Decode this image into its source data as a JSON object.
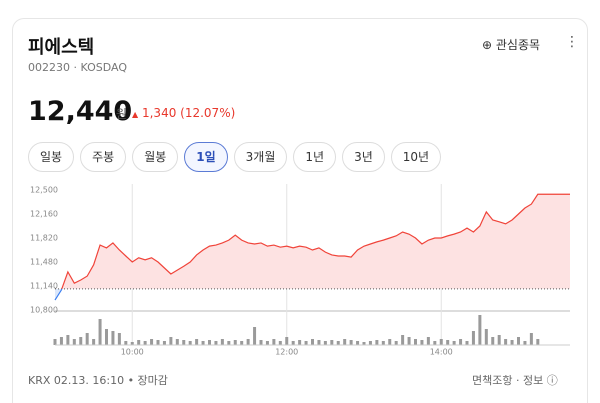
{
  "header": {
    "title": "피에스텍",
    "code": "002230 · KOSDAQ",
    "watch": "관심종목"
  },
  "price": {
    "value": "12,440",
    "unit": "원",
    "arrow": "▲",
    "change": "1,340 (12.07%)"
  },
  "tabs": [
    {
      "label": "일봉"
    },
    {
      "label": "주봉"
    },
    {
      "label": "월봉"
    },
    {
      "label": "1일",
      "active": true
    },
    {
      "label": "3개월"
    },
    {
      "label": "1년"
    },
    {
      "label": "3년"
    },
    {
      "label": "10년"
    }
  ],
  "chart_data": {
    "type": "line",
    "categories": [
      null,
      null,
      null,
      null,
      null,
      null,
      null,
      null,
      null,
      null,
      null,
      null,
      "10:00",
      null,
      null,
      null,
      null,
      null,
      null,
      null,
      null,
      null,
      null,
      null,
      null,
      null,
      null,
      null,
      null,
      null,
      null,
      null,
      null,
      null,
      null,
      null,
      "12:00",
      null,
      null,
      null,
      null,
      null,
      null,
      null,
      null,
      null,
      null,
      null,
      null,
      null,
      null,
      null,
      null,
      null,
      null,
      null,
      null,
      null,
      null,
      null,
      "14:00",
      null,
      null,
      null,
      null,
      null,
      null,
      null,
      null,
      null,
      null,
      null,
      null,
      null,
      null,
      null,
      null,
      null,
      null,
      null,
      null
    ],
    "values": [
      10940,
      11085,
      11340,
      11180,
      11225,
      11280,
      11440,
      11720,
      11680,
      11750,
      11650,
      11565,
      11480,
      11540,
      11510,
      11540,
      11480,
      11395,
      11310,
      11365,
      11420,
      11480,
      11580,
      11650,
      11705,
      11720,
      11750,
      11790,
      11860,
      11790,
      11750,
      11735,
      11750,
      11705,
      11720,
      11690,
      11705,
      11680,
      11705,
      11690,
      11650,
      11680,
      11620,
      11580,
      11565,
      11565,
      11550,
      11650,
      11705,
      11735,
      11765,
      11790,
      11820,
      11850,
      11905,
      11875,
      11820,
      11735,
      11790,
      11820,
      11820,
      11850,
      11875,
      11905,
      11960,
      11905,
      11990,
      12190,
      12075,
      12050,
      12020,
      12075,
      12160,
      12245,
      12300,
      12440,
      12440,
      12440,
      12440,
      12440,
      12440
    ],
    "volume": [
      6,
      8,
      10,
      6,
      8,
      12,
      6,
      26,
      16,
      14,
      12,
      4,
      3,
      5,
      4,
      6,
      5,
      4,
      8,
      6,
      5,
      4,
      6,
      4,
      5,
      4,
      6,
      4,
      5,
      4,
      6,
      18,
      5,
      4,
      6,
      4,
      8,
      4,
      5,
      4,
      6,
      5,
      4,
      5,
      4,
      6,
      5,
      4,
      3,
      4,
      5,
      4,
      6,
      4,
      10,
      8,
      6,
      5,
      8,
      4,
      6,
      5,
      4,
      6,
      4,
      14,
      30,
      16,
      8,
      10,
      6,
      5,
      8,
      4,
      12,
      6,
      0,
      0,
      0,
      0,
      0
    ],
    "previous_close": 11100,
    "color": "#f0443a",
    "fill": "#fde2e2",
    "down_color": "#3a7ef0",
    "down_fill": "#dbe7fb",
    "volume_color": "#9a9a9a",
    "ylim": [
      10800,
      12500
    ],
    "yticks": [
      {
        "value": 12500,
        "label": "12,500"
      },
      {
        "value": 12160,
        "label": "12,160"
      },
      {
        "value": 11820,
        "label": "11,820"
      },
      {
        "value": 11480,
        "label": "11,480"
      },
      {
        "value": 11140,
        "label": "11,140"
      },
      {
        "value": 10800,
        "label": "10,800"
      }
    ],
    "xgrid": true
  },
  "footer": {
    "status": "KRX 02.13. 16:10 • 장마감",
    "links": "면책조항 · 정보"
  }
}
